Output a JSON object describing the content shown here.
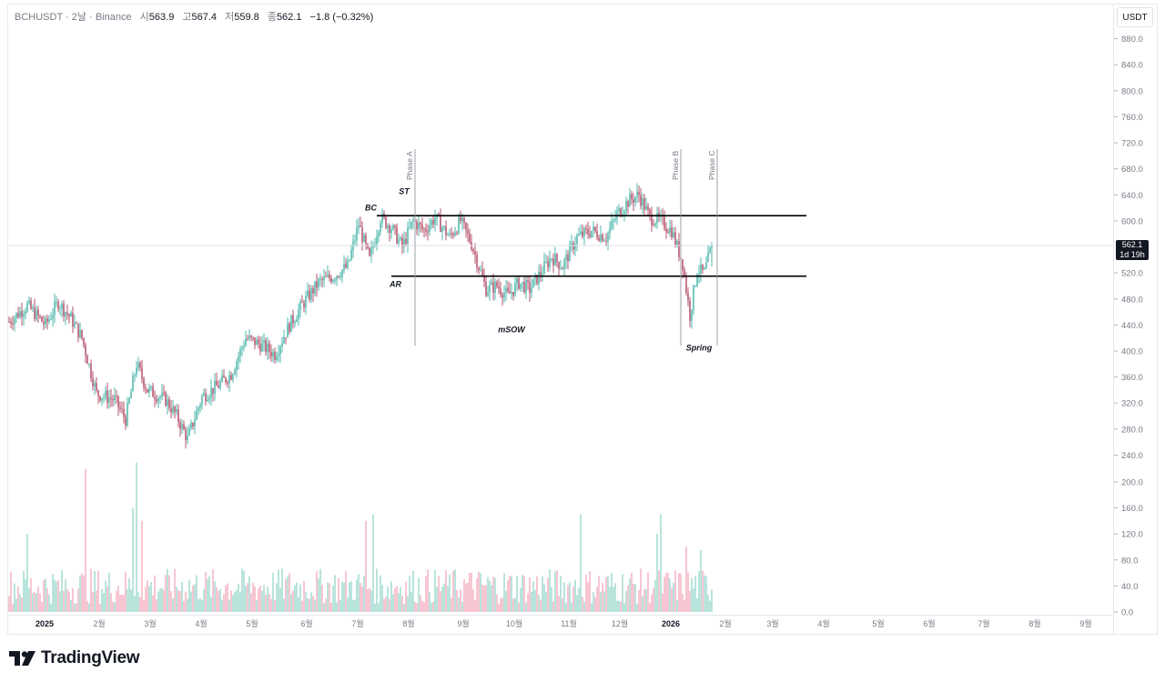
{
  "header": {
    "symbol": "BCHUSDT",
    "interval": "2날",
    "exchange": "Binance",
    "open_label": "시",
    "open": "563.9",
    "high_label": "고",
    "high": "567.4",
    "low_label": "저",
    "low": "559.8",
    "close_label": "종",
    "close": "562.1",
    "change": "−1.8 (−0.32%)"
  },
  "unit_badge": "USDT",
  "last_price": {
    "value": "562.1",
    "countdown": "1d 19h"
  },
  "brand": "TradingView",
  "colors": {
    "up": "#26a69a",
    "down": "#a32a4a",
    "volume_up": "#8fd3c8",
    "volume_down": "#f2a3b7",
    "level_line": "#000000",
    "phase_line": "#9598a1",
    "last_price_line": "#e0e3eb"
  },
  "chart_data": {
    "type": "candlestick",
    "y_axis": {
      "min": 0,
      "max": 900,
      "ticks": [
        "880.0",
        "840.0",
        "800.0",
        "760.0",
        "720.0",
        "680.0",
        "640.0",
        "600.0",
        "520.0",
        "480.0",
        "440.0",
        "400.0",
        "360.0",
        "320.0",
        "280.0",
        "240.0",
        "200.0",
        "160.0",
        "120.0",
        "80.0",
        "40.0",
        "0.0"
      ]
    },
    "x_axis": {
      "start": "2025-01-01",
      "ticks": [
        "2025",
        "2월",
        "3월",
        "4월",
        "5월",
        "6월",
        "7월",
        "8월",
        "9월",
        "10월",
        "11월",
        "12월",
        "2026",
        "2월",
        "3월",
        "4월",
        "5월",
        "6월",
        "7월",
        "8월",
        "9월"
      ]
    },
    "price_path": [
      {
        "t": 0,
        "p": 445
      },
      {
        "t": 10,
        "p": 470
      },
      {
        "t": 20,
        "p": 440
      },
      {
        "t": 27,
        "p": 475
      },
      {
        "t": 34,
        "p": 450
      },
      {
        "t": 40,
        "p": 420
      },
      {
        "t": 48,
        "p": 335
      },
      {
        "t": 58,
        "p": 325
      },
      {
        "t": 64,
        "p": 295
      },
      {
        "t": 70,
        "p": 380
      },
      {
        "t": 76,
        "p": 340
      },
      {
        "t": 86,
        "p": 325
      },
      {
        "t": 92,
        "p": 300
      },
      {
        "t": 98,
        "p": 265
      },
      {
        "t": 106,
        "p": 330
      },
      {
        "t": 114,
        "p": 345
      },
      {
        "t": 122,
        "p": 365
      },
      {
        "t": 130,
        "p": 420
      },
      {
        "t": 138,
        "p": 410
      },
      {
        "t": 146,
        "p": 395
      },
      {
        "t": 154,
        "p": 440
      },
      {
        "t": 162,
        "p": 475
      },
      {
        "t": 170,
        "p": 505
      },
      {
        "t": 178,
        "p": 515
      },
      {
        "t": 186,
        "p": 530
      },
      {
        "t": 192,
        "p": 595
      },
      {
        "t": 198,
        "p": 540
      },
      {
        "t": 204,
        "p": 605
      },
      {
        "t": 210,
        "p": 590
      },
      {
        "t": 216,
        "p": 560
      },
      {
        "t": 222,
        "p": 600
      },
      {
        "t": 228,
        "p": 585
      },
      {
        "t": 234,
        "p": 605
      },
      {
        "t": 242,
        "p": 575
      },
      {
        "t": 248,
        "p": 600
      },
      {
        "t": 254,
        "p": 565
      },
      {
        "t": 262,
        "p": 495
      },
      {
        "t": 268,
        "p": 500
      },
      {
        "t": 274,
        "p": 485
      },
      {
        "t": 280,
        "p": 505
      },
      {
        "t": 286,
        "p": 495
      },
      {
        "t": 292,
        "p": 520
      },
      {
        "t": 298,
        "p": 545
      },
      {
        "t": 304,
        "p": 530
      },
      {
        "t": 312,
        "p": 575
      },
      {
        "t": 320,
        "p": 585
      },
      {
        "t": 328,
        "p": 575
      },
      {
        "t": 334,
        "p": 610
      },
      {
        "t": 340,
        "p": 630
      },
      {
        "t": 346,
        "p": 640
      },
      {
        "t": 352,
        "p": 605
      },
      {
        "t": 358,
        "p": 600
      },
      {
        "t": 364,
        "p": 585
      },
      {
        "t": 370,
        "p": 535
      },
      {
        "t": 374,
        "p": 455
      },
      {
        "t": 378,
        "p": 525
      },
      {
        "t": 382,
        "p": 520
      },
      {
        "t": 386,
        "p": 562
      }
    ],
    "volume_range": [
      10,
      230
    ],
    "volume_spikes": [
      {
        "t": 10,
        "v": 120
      },
      {
        "t": 42,
        "v": 220
      },
      {
        "t": 68,
        "v": 160
      },
      {
        "t": 70,
        "v": 230
      },
      {
        "t": 73,
        "v": 140
      },
      {
        "t": 196,
        "v": 140
      },
      {
        "t": 200,
        "v": 150
      },
      {
        "t": 314,
        "v": 150
      },
      {
        "t": 358,
        "v": 150
      },
      {
        "t": 356,
        "v": 120
      },
      {
        "t": 380,
        "v": 95
      },
      {
        "t": 372,
        "v": 100
      }
    ],
    "levels": [
      {
        "price": 608,
        "from_t": 202,
        "to_t": 418
      },
      {
        "price": 515,
        "from_t": 210,
        "to_t": 418
      }
    ],
    "phase_lines": [
      {
        "label": "Phase A",
        "t": 222
      },
      {
        "label": "Phase B",
        "t": 368
      },
      {
        "label": "Phase C",
        "t": 388
      }
    ],
    "annotations": [
      {
        "label": "BC",
        "t": 202,
        "p": 620
      },
      {
        "label": "ST",
        "t": 217,
        "p": 645
      },
      {
        "label": "AR",
        "t": 209,
        "p": 503
      },
      {
        "label": "mSOW",
        "t": 276,
        "p": 433
      },
      {
        "label": "Spring",
        "t": 379,
        "p": 405
      }
    ]
  }
}
